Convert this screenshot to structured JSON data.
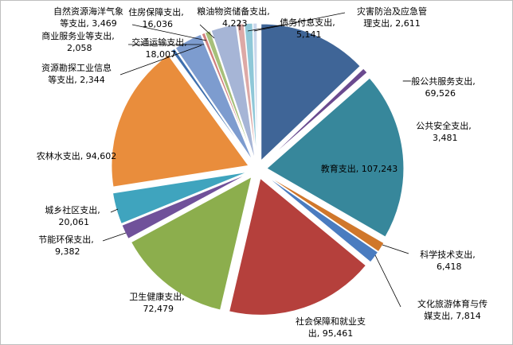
{
  "chart_data": {
    "type": "pie",
    "title": "",
    "exploded": true,
    "start_angle_deg": 0,
    "direction": "clockwise",
    "slices": [
      {
        "label": "一般公共服务支出",
        "value": 69526,
        "value_text": "69,526",
        "color": "#3F6597"
      },
      {
        "label": "公共安全支出",
        "value": 3481,
        "value_text": "3,481",
        "color": "#6A4A8F"
      },
      {
        "label": "教育支出",
        "value": 107243,
        "value_text": "107,243",
        "color": "#37879B"
      },
      {
        "label": "科学技术支出",
        "value": 6418,
        "value_text": "6,418",
        "color": "#D0772B"
      },
      {
        "label": "文化旅游体育与传媒支出",
        "value": 7814,
        "value_text": "7,814",
        "color": "#4A7CC0"
      },
      {
        "label": "社会保障和就业支出",
        "value": 95461,
        "value_text": "95,461",
        "color": "#B5403C"
      },
      {
        "label": "卫生健康支出",
        "value": 72479,
        "value_text": "72,479",
        "color": "#8CAE4D"
      },
      {
        "label": "节能环保支出",
        "value": 9382,
        "value_text": "9,382",
        "color": "#70519A"
      },
      {
        "label": "城乡社区支出",
        "value": 20061,
        "value_text": "20,061",
        "color": "#3FA4BE"
      },
      {
        "label": "农林水支出",
        "value": 94602,
        "value_text": "94,602",
        "color": "#E98D3C"
      },
      {
        "label": "资源勘探工业信息等支出",
        "value": 2344,
        "value_text": "2,344",
        "color": "#3E6FAE"
      },
      {
        "label": "交通运输支出",
        "value": 18007,
        "value_text": "18,007",
        "color": "#7D9CCF"
      },
      {
        "label": "商业服务业等支出",
        "value": 2058,
        "value_text": "2,058",
        "color": "#D17F7C"
      },
      {
        "label": "自然资源海洋气象等支出",
        "value": 3469,
        "value_text": "3,469",
        "color": "#A7C07A"
      },
      {
        "label": "住房保障支出",
        "value": 16036,
        "value_text": "16,036",
        "color": "#A6B5D6"
      },
      {
        "label": "粮油物资储备支出",
        "value": 4223,
        "value_text": "4,223",
        "color": "#DDA9A6"
      },
      {
        "label": "债务付息支出",
        "value": 5141,
        "value_text": "5,141",
        "color": "#8FC8D8"
      },
      {
        "label": "灾害防治及应急管理支出",
        "value": 2611,
        "value_text": "2,611",
        "color": "#C9D7EC"
      }
    ]
  }
}
